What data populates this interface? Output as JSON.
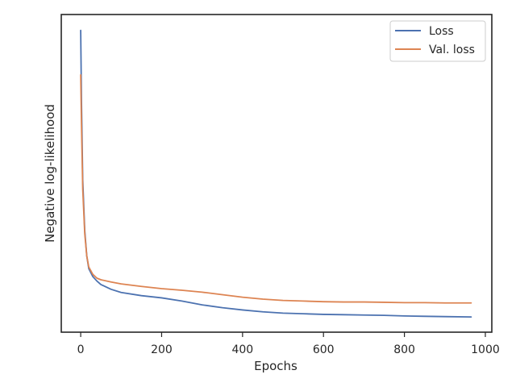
{
  "chart_data": {
    "type": "line",
    "title": "",
    "xlabel": "Epochs",
    "ylabel": "Negative log-likelihood",
    "xlim": [
      -48,
      1016
    ],
    "ylim": [
      0,
      100
    ],
    "xticks": [
      0,
      200,
      400,
      600,
      800,
      1000
    ],
    "xtick_labels": [
      "0",
      "200",
      "400",
      "600",
      "800",
      "1000"
    ],
    "yticks_visible": false,
    "grid": false,
    "legend": {
      "placement": "top-right"
    },
    "series": [
      {
        "name": "Loss",
        "color": "#4c72b0",
        "x": [
          0,
          2,
          5,
          10,
          15,
          20,
          30,
          40,
          50,
          75,
          100,
          150,
          200,
          250,
          300,
          350,
          400,
          450,
          500,
          550,
          600,
          650,
          700,
          750,
          800,
          850,
          900,
          965
        ],
        "y": [
          95,
          72,
          48,
          32,
          24,
          20,
          17.5,
          16.1,
          15,
          13.5,
          12.5,
          11.5,
          10.8,
          9.8,
          8.6,
          7.7,
          7.0,
          6.4,
          6.0,
          5.8,
          5.6,
          5.5,
          5.4,
          5.3,
          5.1,
          5.0,
          4.9,
          4.8
        ]
      },
      {
        "name": "Val. loss",
        "color": "#dd8452",
        "x": [
          0,
          2,
          5,
          10,
          15,
          20,
          30,
          40,
          50,
          75,
          100,
          150,
          200,
          250,
          300,
          350,
          400,
          450,
          500,
          550,
          600,
          650,
          700,
          750,
          800,
          850,
          900,
          965
        ],
        "y": [
          81,
          65,
          45,
          31,
          24,
          20.5,
          18.2,
          17,
          16.5,
          15.8,
          15.2,
          14.4,
          13.7,
          13.2,
          12.6,
          11.8,
          11.0,
          10.4,
          10.0,
          9.8,
          9.6,
          9.5,
          9.5,
          9.4,
          9.3,
          9.3,
          9.2,
          9.2
        ]
      }
    ]
  }
}
